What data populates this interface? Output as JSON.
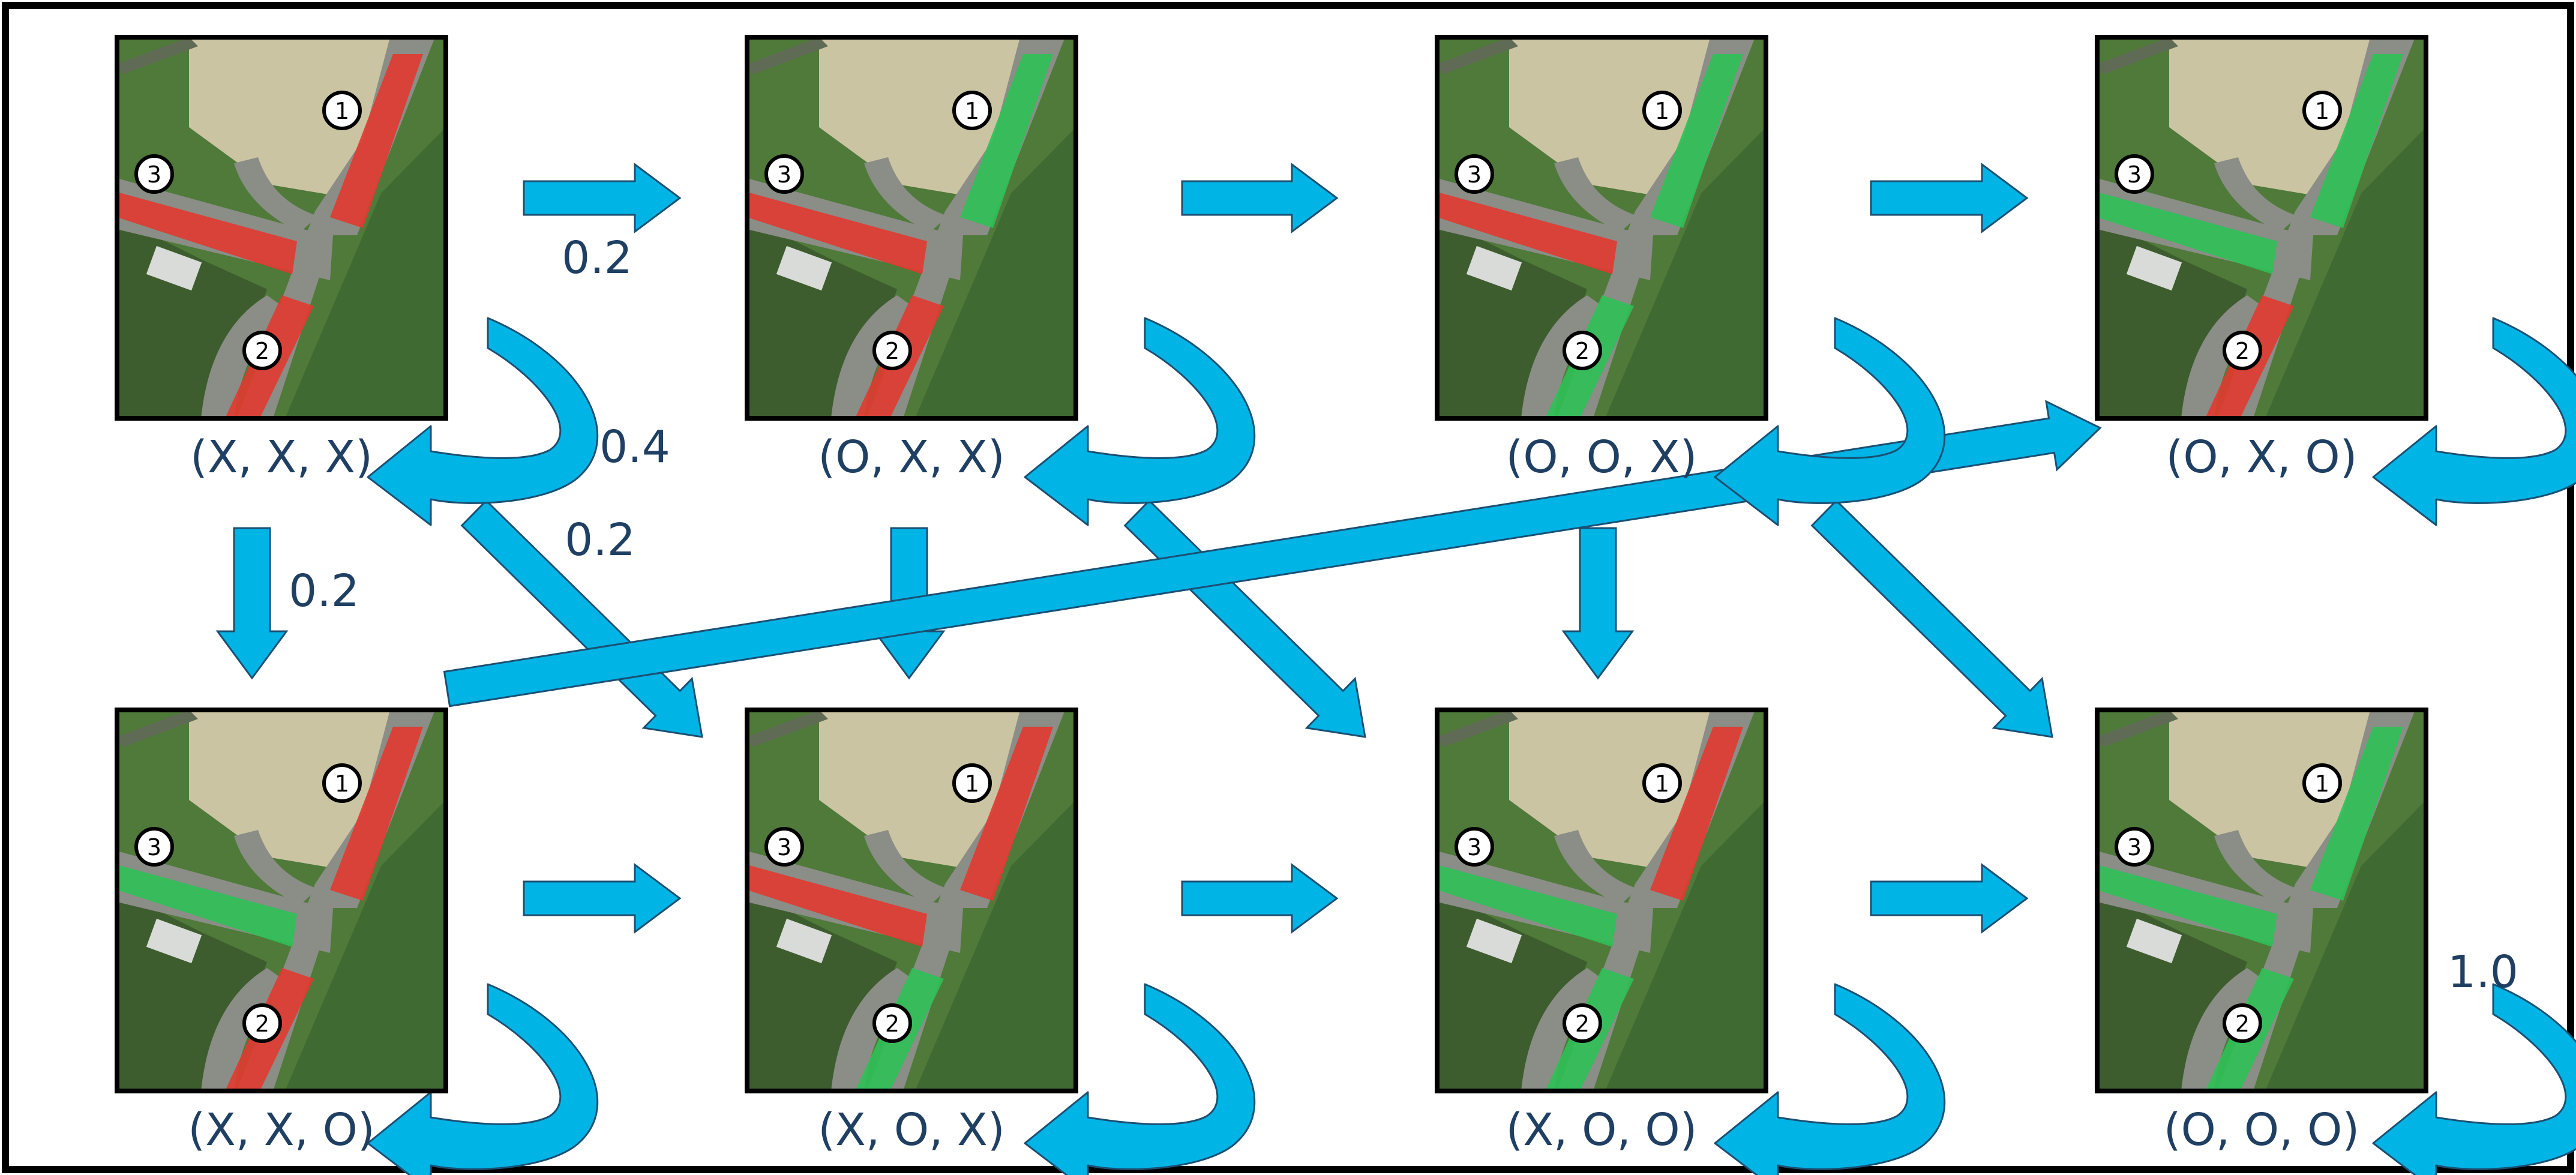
{
  "colors": {
    "frame": "#000000",
    "arrow_fill": "#00b4e6",
    "arrow_stroke": "#1b4f72",
    "label": "#1f3f63",
    "field_light": "#cbc4a2",
    "field_dark": "#3e5d2e",
    "grass": "#4f7a3a",
    "road": "#8b8d87",
    "red": "#e03a30",
    "green": "#2fc056",
    "circle_fill": "#ffffff",
    "circle_stroke": "#000000"
  },
  "states": [
    {
      "id": "s_xxx",
      "label": "(X, X, X)",
      "lanes": [
        "red",
        "red",
        "red"
      ]
    },
    {
      "id": "s_oxx",
      "label": "(O, X, X)",
      "lanes": [
        "green",
        "red",
        "red"
      ]
    },
    {
      "id": "s_oox",
      "label": "(O, O, X)",
      "lanes": [
        "green",
        "green",
        "red"
      ]
    },
    {
      "id": "s_oxo",
      "label": "(O, X, O)",
      "lanes": [
        "green",
        "red",
        "green"
      ]
    },
    {
      "id": "s_xxo",
      "label": "(X, X, O)",
      "lanes": [
        "red",
        "red",
        "green"
      ]
    },
    {
      "id": "s_xox",
      "label": "(X, O, X)",
      "lanes": [
        "red",
        "green",
        "red"
      ]
    },
    {
      "id": "s_xoo",
      "label": "(X, O, O)",
      "lanes": [
        "red",
        "green",
        "green"
      ]
    },
    {
      "id": "s_ooo",
      "label": "(O, O, O)",
      "lanes": [
        "green",
        "green",
        "green"
      ]
    }
  ],
  "lane_numbers": [
    "1",
    "2",
    "3"
  ],
  "probabilities": [
    "0.2",
    "0.4",
    "0.2",
    "0.2",
    "1.0"
  ]
}
